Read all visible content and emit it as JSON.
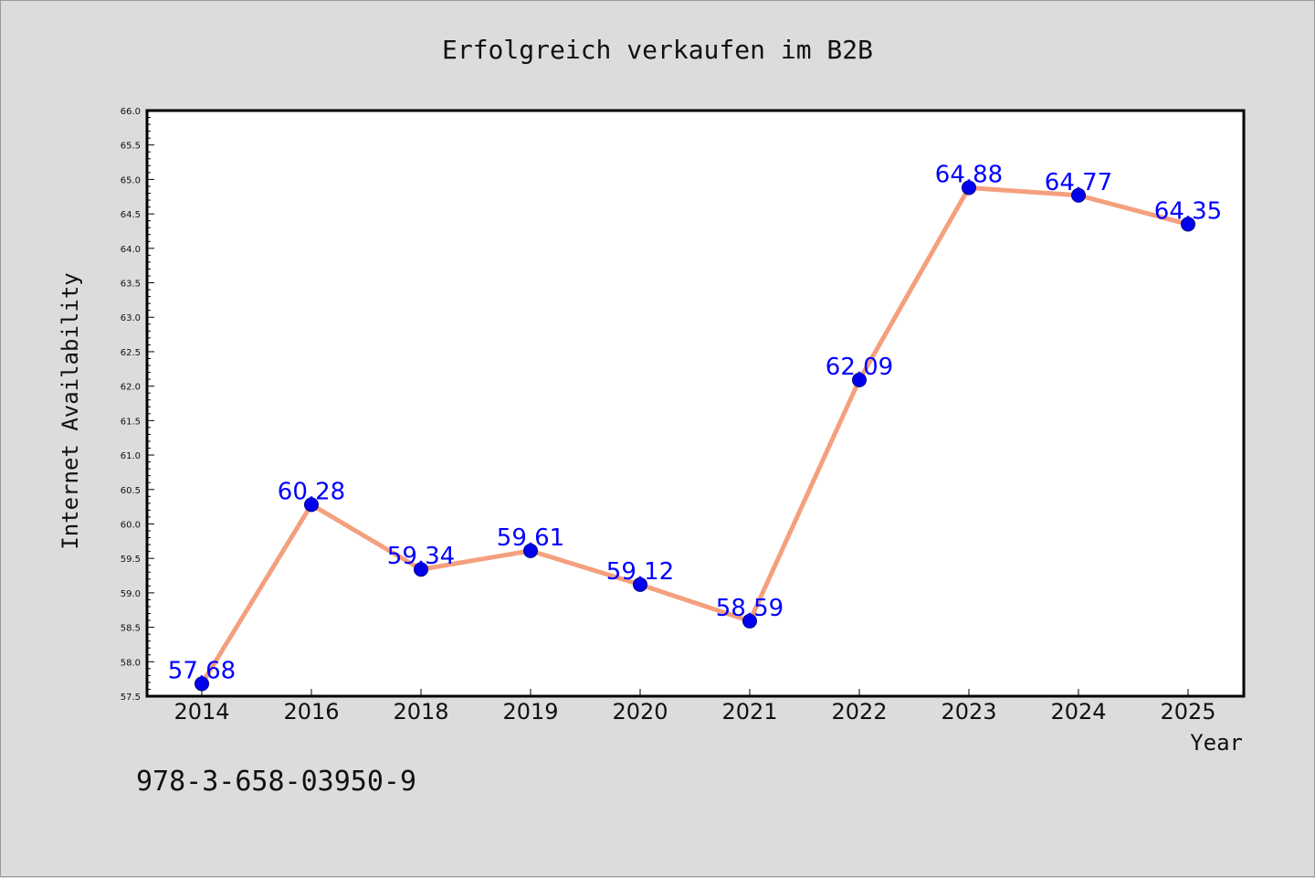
{
  "chart_data": {
    "type": "line",
    "title": "Erfolgreich verkaufen im B2B",
    "xlabel": "Year",
    "ylabel": "Internet Availability",
    "categories": [
      "2014",
      "2016",
      "2018",
      "2019",
      "2020",
      "2021",
      "2022",
      "2023",
      "2024",
      "2025"
    ],
    "series": [
      {
        "values": [
          57.68,
          60.28,
          59.34,
          59.61,
          59.12,
          58.59,
          62.09,
          64.88,
          64.77,
          64.35
        ],
        "labels": [
          "57.68",
          "60.28",
          "59.34",
          "59.61",
          "59.12",
          "58.59",
          "62.09",
          "64.88",
          "64.77",
          "64.35"
        ]
      }
    ],
    "ylim": [
      57.5,
      66.0
    ],
    "yticks": [
      "57.5",
      "58.0",
      "58.5",
      "59.0",
      "59.5",
      "60.0",
      "60.5",
      "61.0",
      "61.5",
      "62.0",
      "62.5",
      "63.0",
      "63.5",
      "64.0",
      "64.5",
      "65.0",
      "65.5",
      "66.0"
    ],
    "grid": false,
    "legend": "none",
    "colors": {
      "line": "#f4a07e",
      "marker": "#0000ee",
      "marker_edge": "#00008b",
      "data_label": "#0000ff",
      "plot_background": "#ffffff",
      "figure_background": "#dcdcdc",
      "frame": "#000000"
    }
  },
  "footnote": "978-3-658-03950-9"
}
